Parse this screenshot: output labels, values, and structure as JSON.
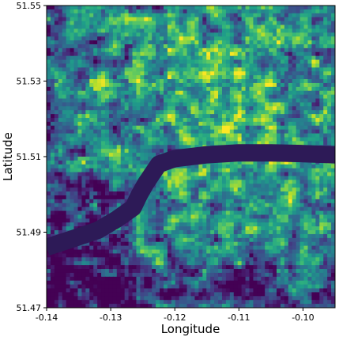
{
  "chart_data": {
    "type": "heatmap",
    "xlabel": "Longitude",
    "ylabel": "Latitude",
    "xlim": [
      -0.14,
      -0.095
    ],
    "ylim": [
      51.47,
      51.55
    ],
    "xticks": [
      -0.14,
      -0.13,
      -0.12,
      -0.11,
      -0.1
    ],
    "xtick_labels": [
      "-0.14",
      "-0.13",
      "-0.12",
      "-0.11",
      "-0.10"
    ],
    "yticks": [
      51.47,
      51.49,
      51.51,
      51.53,
      51.55
    ],
    "ytick_labels": [
      "51.47",
      "51.49",
      "51.51",
      "51.53",
      "51.55"
    ],
    "colormap": "viridis",
    "value_range": [
      0,
      1
    ],
    "grid": false,
    "legend": "none",
    "river_path": [
      [
        -0.095,
        51.5105
      ],
      [
        -0.1,
        51.5108
      ],
      [
        -0.105,
        51.511
      ],
      [
        -0.11,
        51.511
      ],
      [
        -0.115,
        51.5105
      ],
      [
        -0.12,
        51.5095
      ],
      [
        -0.1225,
        51.508
      ],
      [
        -0.1235,
        51.5055
      ],
      [
        -0.1245,
        51.503
      ],
      [
        -0.1255,
        51.5
      ],
      [
        -0.1265,
        51.4965
      ],
      [
        -0.129,
        51.4935
      ],
      [
        -0.132,
        51.4905
      ],
      [
        -0.1355,
        51.4885
      ],
      [
        -0.14,
        51.486
      ]
    ],
    "colors": {
      "low": "#440154",
      "mid": "#21918c",
      "high": "#fde725",
      "river": "#2d1a57"
    }
  }
}
